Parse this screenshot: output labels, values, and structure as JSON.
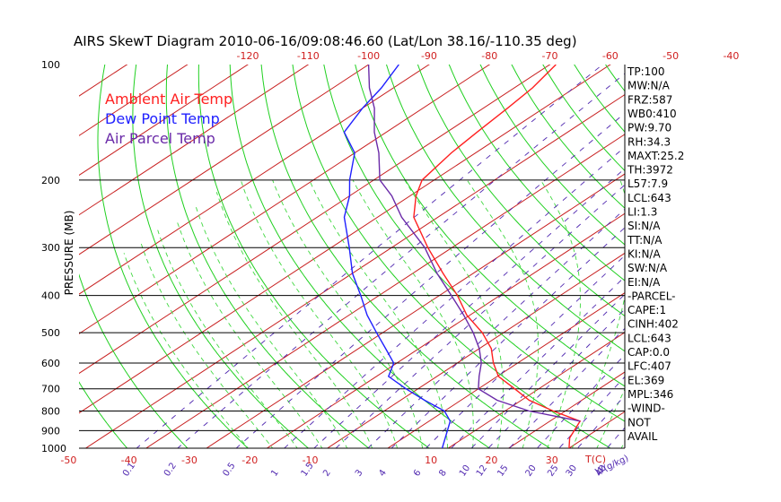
{
  "chart_data": {
    "type": "skewt",
    "title": "AIRS SkewT Diagram 2010-06-16/09:08:46.60 (Lat/Lon 38.16/-110.35 deg)",
    "ylabel": "PRESSURE (MB)",
    "xlabel_bottom_unit": "T(C)",
    "mixing_ratio_unit": "W(g/kg)",
    "pressure_ticks": [
      100,
      200,
      300,
      400,
      500,
      600,
      700,
      800,
      900,
      1000
    ],
    "top_temp_ticks": [
      "-120",
      "-110",
      "-100",
      "-90",
      "-80",
      "-70",
      "-60",
      "-50",
      "-40"
    ],
    "bottom_temp_ticks": [
      "-50",
      "-40",
      "-30",
      "-20",
      "-10",
      "10",
      "20",
      "30"
    ],
    "mixing_ratio_labels": [
      "0.1",
      "0.2",
      "0.5",
      "1",
      "1.5",
      "2",
      "3",
      "4",
      "6",
      "8",
      "10",
      "12",
      "15",
      "20",
      "25",
      "30",
      "40"
    ],
    "legend": [
      {
        "name": "Ambient Air Temp",
        "color": "#ff2020"
      },
      {
        "name": "Dew Point Temp",
        "color": "#2020ff"
      },
      {
        "name": "Air Parcel Temp",
        "color": "#6a2aa8"
      }
    ],
    "colors": {
      "isotherm": "#c82020",
      "dry_adiabat": "#20d020",
      "moist_adiabat": "#40d840",
      "mixing_ratio": "#5028b0",
      "isobar": "#000000"
    },
    "series": [
      {
        "name": "Ambient Air Temp",
        "pressure": [
          1000,
          940,
          850,
          800,
          750,
          700,
          650,
          600,
          550,
          500,
          450,
          400,
          350,
          300,
          250,
          220,
          200,
          170,
          150,
          130,
          115,
          100
        ],
        "temp_c": [
          30.0,
          27.5,
          25.0,
          18.0,
          11.3,
          6.0,
          0.2,
          -4.0,
          -8.0,
          -13.5,
          -20.5,
          -27.0,
          -35.0,
          -44.0,
          -54.0,
          -59.0,
          -62.0,
          -64.0,
          -65.0,
          -66.0,
          -67.0,
          -69.0
        ]
      },
      {
        "name": "Dew Point Temp",
        "pressure": [
          1000,
          850,
          800,
          750,
          700,
          650,
          600,
          550,
          500,
          450,
          400,
          350,
          300,
          250,
          220,
          200,
          170,
          150,
          130,
          115,
          100
        ],
        "temp_c": [
          9.0,
          3.5,
          0.0,
          -6.0,
          -12.0,
          -18.0,
          -20.5,
          -25.5,
          -31.0,
          -37.0,
          -43.0,
          -50.0,
          -57.0,
          -65.5,
          -70.0,
          -74.0,
          -80.0,
          -87.0,
          -90.0,
          -92.0,
          -95.0
        ]
      },
      {
        "name": "Air Parcel Temp",
        "pressure": [
          850,
          800,
          750,
          700,
          650,
          600,
          550,
          500,
          450,
          400,
          350,
          300,
          250,
          220,
          200,
          170,
          150,
          130,
          115,
          100
        ],
        "temp_c": [
          25.0,
          14.0,
          6.0,
          0.0,
          -3.0,
          -6.0,
          -10.0,
          -15.0,
          -21.0,
          -28.0,
          -36.0,
          -44.5,
          -56.0,
          -63.0,
          -69.0,
          -76.0,
          -82.0,
          -88.0,
          -94.0,
          -100.0
        ]
      }
    ]
  },
  "indices": [
    "TP:100",
    "MW:N/A",
    "FRZ:587",
    "WB0:410",
    "PW:9.70",
    "RH:34.3",
    "MAXT:25.2",
    "TH:3972",
    "L57:7.9",
    "LCL:643",
    "LI:1.3",
    "SI:N/A",
    "TT:N/A",
    "KI:N/A",
    "SW:N/A",
    "EI:N/A",
    "-PARCEL-",
    "CAPE:1",
    "CINH:402",
    "LCL:643",
    "CAP:0.0",
    "LFC:407",
    "EL:369",
    "MPL:346",
    "-WIND-",
    "NOT",
    "AVAIL"
  ]
}
